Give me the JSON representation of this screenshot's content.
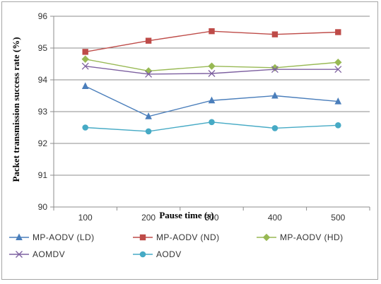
{
  "chart_data": {
    "type": "line",
    "xlabel": "Pause time (s)",
    "ylabel": "Packet transmission success rate (%)",
    "categories": [
      "100",
      "200",
      "300",
      "400",
      "500"
    ],
    "ylim": [
      90,
      96
    ],
    "yticks": [
      "90",
      "91",
      "92",
      "93",
      "94",
      "95",
      "96"
    ],
    "grid": "horizontal",
    "legend_position": "bottom",
    "series": [
      {
        "name": "MP-AODV (LD)",
        "values": [
          93.8,
          92.85,
          93.35,
          93.5,
          93.32
        ],
        "color": "#4a7ebb",
        "marker": "triangle"
      },
      {
        "name": "MP-AODV (ND)",
        "values": [
          94.88,
          95.23,
          95.53,
          95.43,
          95.5
        ],
        "color": "#be4b48",
        "marker": "square"
      },
      {
        "name": "MP-AODV (HD)",
        "values": [
          94.65,
          94.28,
          94.43,
          94.38,
          94.55
        ],
        "color": "#98b954",
        "marker": "diamond"
      },
      {
        "name": "AOMDV",
        "values": [
          94.43,
          94.18,
          94.2,
          94.33,
          94.33
        ],
        "color": "#7d60a0",
        "marker": "cross"
      },
      {
        "name": "AODV",
        "values": [
          92.5,
          92.38,
          92.67,
          92.48,
          92.57
        ],
        "color": "#46aac5",
        "marker": "circle"
      }
    ]
  }
}
